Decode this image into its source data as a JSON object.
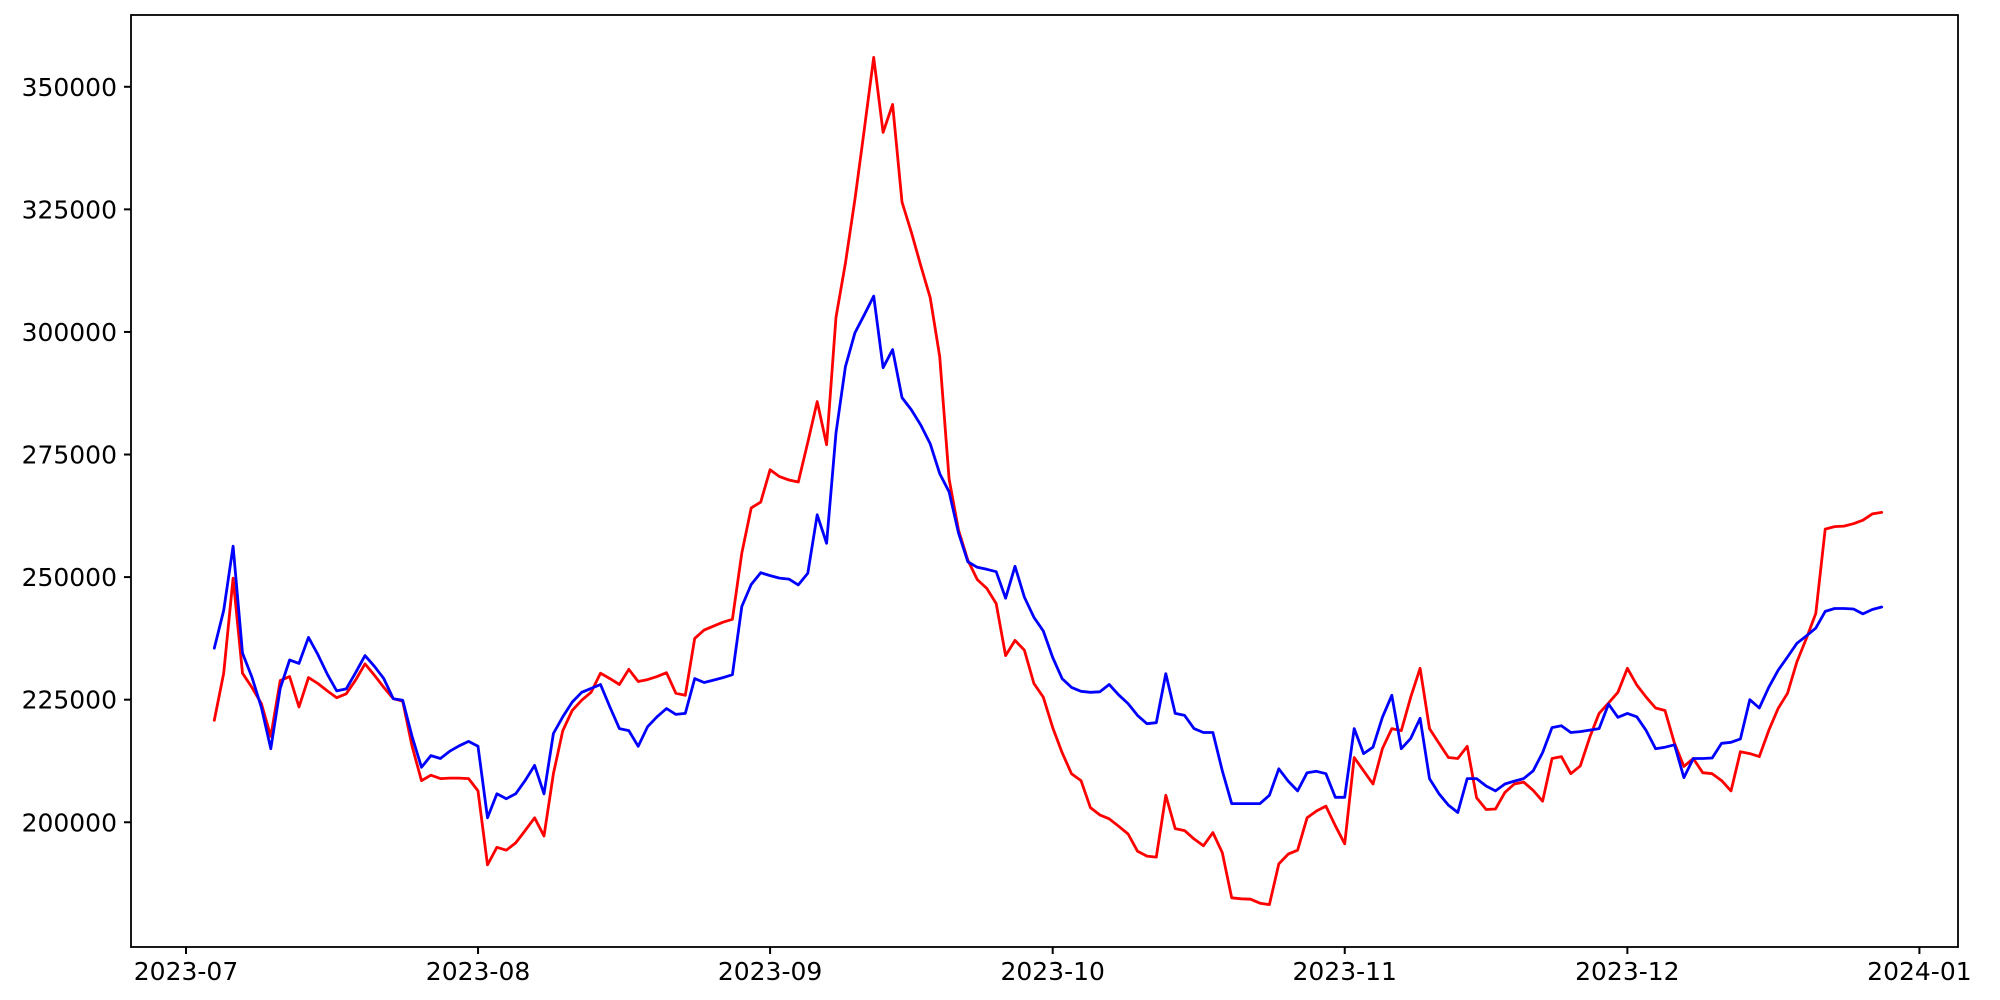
{
  "figure": {
    "background": "#ffffff",
    "axis_color": "#000000"
  },
  "chart_data": {
    "type": "line",
    "title": "",
    "xlabel": "",
    "ylabel": "",
    "grid": false,
    "legend_position": "none",
    "x_tick_labels": [
      "2023-07",
      "2023-08",
      "2023-09",
      "2023-10",
      "2023-11",
      "2023-12",
      "2024-01"
    ],
    "y_ticks": [
      200000,
      225000,
      250000,
      275000,
      300000,
      325000,
      350000
    ],
    "ylim": [
      174560,
      364640
    ],
    "x_epoch": "2023-07-01",
    "x_start_date": "2023-07-04",
    "x_days_total": 184,
    "series": [
      {
        "name": "red-series",
        "color": "#ff0000",
        "values": [
          220800,
          230400,
          249800,
          230400,
          227500,
          224200,
          217500,
          228900,
          229700,
          223500,
          229500,
          228300,
          226800,
          225400,
          226200,
          229000,
          232300,
          230000,
          227500,
          225200,
          224700,
          215500,
          208500,
          209600,
          208900,
          209000,
          209000,
          208900,
          206400,
          191300,
          194900,
          194300,
          195800,
          198300,
          200900,
          197200,
          209900,
          218700,
          222800,
          224900,
          226500,
          230400,
          229300,
          228100,
          231200,
          228700,
          229100,
          229700,
          230500,
          226300,
          225900,
          237500,
          239200,
          240000,
          240800,
          241400,
          254900,
          264100,
          265300,
          271900,
          270500,
          269800,
          269400,
          277500,
          285800,
          277000,
          303000,
          314000,
          327000,
          341300,
          356000,
          340700,
          346400,
          326500,
          320300,
          313500,
          307000,
          295000,
          270000,
          259600,
          253400,
          249500,
          247700,
          244600,
          234000,
          237100,
          235100,
          228300,
          225500,
          219300,
          214200,
          209900,
          208500,
          203000,
          201500,
          200700,
          199200,
          197600,
          194100,
          193100,
          192900,
          205500,
          198700,
          198300,
          196600,
          195200,
          197900,
          193800,
          184600,
          184400,
          184300,
          183500,
          183200,
          191500,
          193500,
          194300,
          200900,
          202300,
          203300,
          199300,
          195600,
          213200,
          210500,
          207800,
          215000,
          219100,
          218700,
          225500,
          231400,
          219100,
          216100,
          213200,
          213000,
          215500,
          205000,
          202600,
          202700,
          206100,
          207800,
          208200,
          206500,
          204300,
          213000,
          213400,
          209900,
          211500,
          217300,
          222200,
          224300,
          226500,
          231400,
          228000,
          225500,
          223300,
          222800,
          216100,
          211400,
          213000,
          210100,
          209900,
          208500,
          206400,
          214400,
          214000,
          213400,
          218700,
          223200,
          226300,
          232700,
          237500,
          242600,
          259800,
          260300,
          260400,
          260900,
          261600,
          262900,
          263200
        ]
      },
      {
        "name": "blue-series",
        "color": "#0000ff",
        "values": [
          235500,
          243200,
          256300,
          234500,
          229600,
          223400,
          215000,
          227300,
          233100,
          232400,
          237700,
          234200,
          230200,
          226800,
          227200,
          230500,
          234000,
          231800,
          229300,
          225200,
          224900,
          217500,
          211200,
          213600,
          213000,
          214500,
          215600,
          216500,
          215500,
          200900,
          205800,
          204800,
          205800,
          208500,
          211600,
          205800,
          218100,
          221500,
          224500,
          226500,
          227300,
          228100,
          223500,
          219100,
          218700,
          215500,
          219500,
          221500,
          223200,
          222000,
          222200,
          229300,
          228500,
          229000,
          229500,
          230100,
          244000,
          248500,
          250900,
          250300,
          249800,
          249600,
          248400,
          250800,
          262700,
          256900,
          279400,
          292900,
          299800,
          303500,
          307300,
          292700,
          296400,
          286600,
          284100,
          281000,
          277200,
          271100,
          267400,
          259000,
          253100,
          252000,
          251600,
          251100,
          245700,
          252200,
          245900,
          241800,
          239000,
          233600,
          229300,
          227500,
          226700,
          226500,
          226600,
          228100,
          226000,
          224200,
          221800,
          220100,
          220300,
          230300,
          222200,
          221800,
          219100,
          218300,
          218300,
          210500,
          203800,
          203800,
          203800,
          203800,
          205500,
          210900,
          208400,
          206400,
          210100,
          210400,
          209900,
          205100,
          205100,
          219100,
          214000,
          215300,
          221400,
          225900,
          215000,
          217100,
          221200,
          208900,
          205800,
          203500,
          202000,
          208900,
          208900,
          207400,
          206400,
          207800,
          208400,
          208900,
          210500,
          214200,
          219300,
          219700,
          218300,
          218500,
          218800,
          219100,
          224100,
          221400,
          222200,
          221500,
          218700,
          215000,
          215300,
          215800,
          209100,
          213000,
          213000,
          213100,
          216100,
          216300,
          217000,
          225000,
          223300,
          227500,
          231000,
          233700,
          236500,
          238000,
          239600,
          243000,
          243600,
          243600,
          243500,
          242500,
          243400,
          243900
        ]
      }
    ]
  }
}
